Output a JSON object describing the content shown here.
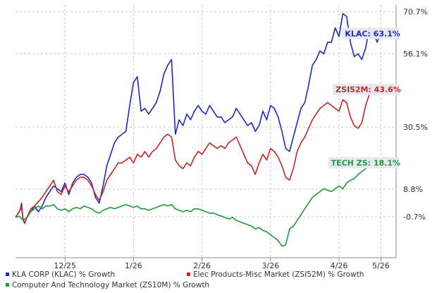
{
  "chart_data": {
    "type": "line",
    "title": "",
    "xlabel": "",
    "ylabel": "",
    "x_ticks": [
      "12/25",
      "1/26",
      "2/26",
      "3/26",
      "4/26",
      "5/26"
    ],
    "y_ticks": [
      "70.7%",
      "56.1%",
      "30.5%",
      "8.8%",
      "-0.7%"
    ],
    "grid": true,
    "legend_position": "bottom",
    "series": [
      {
        "name": "KLA CORP (KLAC) % Growth",
        "end_label": "KLAC: 63.1%",
        "color": "#1f2ab8",
        "points": [
          [
            0.0,
            -1.0
          ],
          [
            1.2,
            1.5
          ],
          [
            1.6,
            4.0
          ],
          [
            2.0,
            -2.0
          ],
          [
            2.4,
            -3.0
          ],
          [
            3.0,
            -1.0
          ],
          [
            4.0,
            1.0
          ],
          [
            5.0,
            3.0
          ],
          [
            6.0,
            1.0
          ],
          [
            7.0,
            3.0
          ],
          [
            8.0,
            6.0
          ],
          [
            9.0,
            8.0
          ],
          [
            10.0,
            10.0
          ],
          [
            11.0,
            9.0
          ],
          [
            12.0,
            8.0
          ],
          [
            13.0,
            11.0
          ],
          [
            14.0,
            7.0
          ],
          [
            15.0,
            11.0
          ],
          [
            16.0,
            13.0
          ],
          [
            17.0,
            14.0
          ],
          [
            18.0,
            14.0
          ],
          [
            19.0,
            13.0
          ],
          [
            20.0,
            11.0
          ],
          [
            21.0,
            6.0
          ],
          [
            22.0,
            4.0
          ],
          [
            23.0,
            10.0
          ],
          [
            24.0,
            17.0
          ],
          [
            25.0,
            21.0
          ],
          [
            26.0,
            25.0
          ],
          [
            27.0,
            27.0
          ],
          [
            28.0,
            28.0
          ],
          [
            29.0,
            29.0
          ],
          [
            30.0,
            38.0
          ],
          [
            31.0,
            46.0
          ],
          [
            32.0,
            48.0
          ],
          [
            33.0,
            36.0
          ],
          [
            34.0,
            37.0
          ],
          [
            35.0,
            35.0
          ],
          [
            36.0,
            37.0
          ],
          [
            37.0,
            39.0
          ],
          [
            38.0,
            43.0
          ],
          [
            39.0,
            49.0
          ],
          [
            40.0,
            52.0
          ],
          [
            41.0,
            54.0
          ],
          [
            42.0,
            28.0
          ],
          [
            43.0,
            33.0
          ],
          [
            44.0,
            31.0
          ],
          [
            45.0,
            35.0
          ],
          [
            46.0,
            33.0
          ],
          [
            47.0,
            36.0
          ],
          [
            48.0,
            38.0
          ],
          [
            49.0,
            36.0
          ],
          [
            50.0,
            35.0
          ],
          [
            51.0,
            38.0
          ],
          [
            52.0,
            36.0
          ],
          [
            53.0,
            34.0
          ],
          [
            54.0,
            34.0
          ],
          [
            55.0,
            32.0
          ],
          [
            56.0,
            33.0
          ],
          [
            57.0,
            34.0
          ],
          [
            58.0,
            37.0
          ],
          [
            59.0,
            35.0
          ],
          [
            60.0,
            33.0
          ],
          [
            61.0,
            31.0
          ],
          [
            62.0,
            32.0
          ],
          [
            63.0,
            29.0
          ],
          [
            64.0,
            31.0
          ],
          [
            65.0,
            36.0
          ],
          [
            66.0,
            33.0
          ],
          [
            67.0,
            38.0
          ],
          [
            68.0,
            37.0
          ],
          [
            69.0,
            34.0
          ],
          [
            70.0,
            29.0
          ],
          [
            71.0,
            23.0
          ],
          [
            72.0,
            22.0
          ],
          [
            73.0,
            27.0
          ],
          [
            74.0,
            32.0
          ],
          [
            75.0,
            37.0
          ],
          [
            76.0,
            39.0
          ],
          [
            77.0,
            45.0
          ],
          [
            78.0,
            52.0
          ],
          [
            79.0,
            54.0
          ],
          [
            80.0,
            57.0
          ],
          [
            81.0,
            56.0
          ],
          [
            82.0,
            60.0
          ],
          [
            83.0,
            60.0
          ],
          [
            84.0,
            65.0
          ],
          [
            85.0,
            62.0
          ],
          [
            86.0,
            70.0
          ],
          [
            87.0,
            69.0
          ],
          [
            88.0,
            60.0
          ],
          [
            89.0,
            55.0
          ],
          [
            90.0,
            56.0
          ],
          [
            91.0,
            54.0
          ],
          [
            92.0,
            58.0
          ],
          [
            93.0,
            65.0
          ],
          [
            94.0,
            64.0
          ],
          [
            95.0,
            60.0
          ],
          [
            96.0,
            63.1
          ]
        ]
      },
      {
        "name": "Elec Products-Misc Market (ZSI52M) % Growth",
        "end_label": "ZSI52M: 43.6%",
        "color": "#c52525",
        "points": [
          [
            0.0,
            -1.0
          ],
          [
            1.0,
            1.0
          ],
          [
            1.5,
            3.0
          ],
          [
            2.0,
            -1.5
          ],
          [
            2.4,
            -3.0
          ],
          [
            3.0,
            -1.0
          ],
          [
            4.0,
            2.0
          ],
          [
            5.0,
            3.0
          ],
          [
            6.0,
            4.5
          ],
          [
            7.0,
            6.0
          ],
          [
            8.0,
            8.0
          ],
          [
            9.0,
            10.0
          ],
          [
            10.0,
            12.0
          ],
          [
            11.0,
            8.0
          ],
          [
            12.0,
            7.0
          ],
          [
            13.0,
            10.0
          ],
          [
            14.0,
            8.0
          ],
          [
            15.0,
            10.0
          ],
          [
            16.0,
            12.0
          ],
          [
            17.0,
            13.0
          ],
          [
            18.0,
            13.0
          ],
          [
            19.0,
            12.0
          ],
          [
            20.0,
            10.0
          ],
          [
            21.0,
            7.0
          ],
          [
            22.0,
            5.0
          ],
          [
            23.0,
            8.0
          ],
          [
            24.0,
            12.0
          ],
          [
            25.0,
            14.0
          ],
          [
            26.0,
            16.0
          ],
          [
            27.0,
            18.0
          ],
          [
            28.0,
            18.0
          ],
          [
            29.0,
            19.0
          ],
          [
            30.0,
            20.0
          ],
          [
            31.0,
            18.0
          ],
          [
            32.0,
            21.0
          ],
          [
            33.0,
            20.0
          ],
          [
            34.0,
            22.0
          ],
          [
            35.0,
            20.0
          ],
          [
            36.0,
            22.0
          ],
          [
            37.0,
            23.0
          ],
          [
            38.0,
            25.0
          ],
          [
            39.0,
            27.0
          ],
          [
            40.0,
            28.0
          ],
          [
            41.0,
            27.0
          ],
          [
            42.0,
            19.0
          ],
          [
            43.0,
            17.0
          ],
          [
            44.0,
            16.0
          ],
          [
            45.0,
            18.0
          ],
          [
            46.0,
            17.0
          ],
          [
            47.0,
            20.0
          ],
          [
            48.0,
            22.0
          ],
          [
            49.0,
            21.0
          ],
          [
            50.0,
            23.0
          ],
          [
            51.0,
            25.0
          ],
          [
            52.0,
            24.0
          ],
          [
            53.0,
            23.0
          ],
          [
            54.0,
            24.0
          ],
          [
            55.0,
            23.0
          ],
          [
            56.0,
            25.0
          ],
          [
            57.0,
            26.0
          ],
          [
            58.0,
            27.0
          ],
          [
            59.0,
            24.0
          ],
          [
            60.0,
            21.0
          ],
          [
            61.0,
            18.0
          ],
          [
            62.0,
            17.0
          ],
          [
            63.0,
            14.0
          ],
          [
            64.0,
            18.0
          ],
          [
            65.0,
            21.0
          ],
          [
            66.0,
            19.0
          ],
          [
            67.0,
            23.0
          ],
          [
            68.0,
            22.0
          ],
          [
            69.0,
            20.0
          ],
          [
            70.0,
            17.0
          ],
          [
            71.0,
            13.0
          ],
          [
            72.0,
            12.0
          ],
          [
            73.0,
            16.0
          ],
          [
            74.0,
            22.0
          ],
          [
            75.0,
            25.0
          ],
          [
            76.0,
            27.0
          ],
          [
            77.0,
            30.0
          ],
          [
            78.0,
            33.0
          ],
          [
            79.0,
            35.0
          ],
          [
            80.0,
            37.0
          ],
          [
            81.0,
            38.0
          ],
          [
            82.0,
            39.0
          ],
          [
            83.0,
            38.0
          ],
          [
            84.0,
            37.0
          ],
          [
            85.0,
            36.0
          ],
          [
            86.0,
            40.0
          ],
          [
            87.0,
            39.0
          ],
          [
            88.0,
            34.0
          ],
          [
            89.0,
            31.0
          ],
          [
            90.0,
            30.0
          ],
          [
            91.0,
            32.0
          ],
          [
            92.0,
            38.0
          ],
          [
            93.0,
            42.0
          ],
          [
            94.0,
            44.0
          ],
          [
            95.0,
            43.0
          ],
          [
            96.0,
            43.6
          ]
        ]
      },
      {
        "name": "Computer And Technology Market (ZS10M) % Growth",
        "end_label": "TECH ZS: 18.1%",
        "color": "#1f9a3c",
        "points": [
          [
            0.0,
            -1.0
          ],
          [
            1.0,
            -0.5
          ],
          [
            2.0,
            -2.0
          ],
          [
            3.0,
            -1.0
          ],
          [
            4.0,
            1.0
          ],
          [
            5.0,
            2.0
          ],
          [
            6.0,
            3.0
          ],
          [
            7.0,
            2.0
          ],
          [
            8.0,
            3.0
          ],
          [
            9.0,
            3.0
          ],
          [
            10.0,
            3.5
          ],
          [
            11.0,
            2.0
          ],
          [
            12.0,
            1.5
          ],
          [
            13.0,
            2.0
          ],
          [
            14.0,
            1.0
          ],
          [
            15.0,
            2.0
          ],
          [
            16.0,
            2.5
          ],
          [
            17.0,
            2.0
          ],
          [
            18.0,
            3.0
          ],
          [
            19.0,
            2.5
          ],
          [
            20.0,
            2.0
          ],
          [
            21.0,
            1.0
          ],
          [
            22.0,
            0.5
          ],
          [
            23.0,
            1.5
          ],
          [
            24.0,
            2.0
          ],
          [
            25.0,
            2.5
          ],
          [
            26.0,
            2.0
          ],
          [
            27.0,
            2.5
          ],
          [
            28.0,
            3.0
          ],
          [
            29.0,
            3.5
          ],
          [
            30.0,
            3.0
          ],
          [
            31.0,
            2.5
          ],
          [
            32.0,
            3.0
          ],
          [
            33.0,
            2.0
          ],
          [
            34.0,
            2.0
          ],
          [
            35.0,
            1.5
          ],
          [
            36.0,
            2.0
          ],
          [
            37.0,
            2.5
          ],
          [
            38.0,
            3.0
          ],
          [
            39.0,
            3.5
          ],
          [
            40.0,
            3.0
          ],
          [
            41.0,
            3.5
          ],
          [
            42.0,
            2.0
          ],
          [
            43.0,
            1.5
          ],
          [
            44.0,
            1.0
          ],
          [
            45.0,
            1.5
          ],
          [
            46.0,
            1.0
          ],
          [
            47.0,
            2.0
          ],
          [
            48.0,
            2.0
          ],
          [
            49.0,
            1.5
          ],
          [
            50.0,
            1.0
          ],
          [
            51.0,
            0.5
          ],
          [
            52.0,
            0.5
          ],
          [
            53.0,
            0.0
          ],
          [
            54.0,
            -0.5
          ],
          [
            55.0,
            -1.0
          ],
          [
            56.0,
            -1.5
          ],
          [
            57.0,
            -1.0
          ],
          [
            58.0,
            -2.0
          ],
          [
            59.0,
            -2.5
          ],
          [
            60.0,
            -3.0
          ],
          [
            61.0,
            -3.5
          ],
          [
            62.0,
            -4.0
          ],
          [
            63.0,
            -5.0
          ],
          [
            64.0,
            -4.5
          ],
          [
            65.0,
            -5.5
          ],
          [
            66.0,
            -6.0
          ],
          [
            67.0,
            -7.0
          ],
          [
            68.0,
            -8.0
          ],
          [
            69.0,
            -9.0
          ],
          [
            70.0,
            -11.0
          ],
          [
            71.0,
            -10.5
          ],
          [
            72.0,
            -5.0
          ],
          [
            73.0,
            -4.0
          ],
          [
            74.0,
            -2.0
          ],
          [
            75.0,
            0.0
          ],
          [
            76.0,
            2.0
          ],
          [
            77.0,
            4.0
          ],
          [
            78.0,
            6.0
          ],
          [
            79.0,
            7.0
          ],
          [
            80.0,
            8.0
          ],
          [
            81.0,
            9.0
          ],
          [
            82.0,
            8.5
          ],
          [
            83.0,
            8.0
          ],
          [
            84.0,
            9.0
          ],
          [
            85.0,
            10.0
          ],
          [
            86.0,
            9.0
          ],
          [
            87.0,
            11.0
          ],
          [
            88.0,
            12.0
          ],
          [
            89.0,
            12.5
          ],
          [
            90.0,
            14.0
          ],
          [
            91.0,
            15.0
          ],
          [
            92.0,
            16.0
          ],
          [
            93.0,
            18.0
          ],
          [
            94.0,
            18.5
          ],
          [
            95.0,
            18.0
          ],
          [
            96.0,
            18.1
          ]
        ]
      }
    ]
  },
  "colors": {
    "grid": "#c9c9c9",
    "axis": "#888888",
    "text": "#333333",
    "label_bg": "#e8e8f0"
  }
}
